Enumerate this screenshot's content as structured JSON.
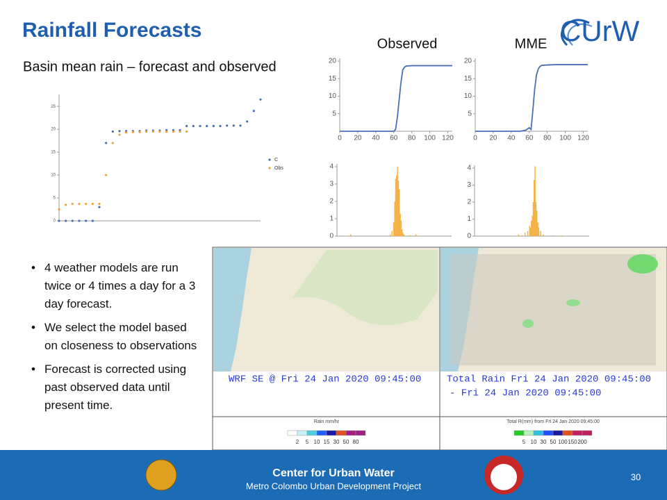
{
  "header": {
    "title": "Rainfall Forecasts",
    "subtitle": "Basin mean rain – forecast and observed",
    "logo": "CUrW"
  },
  "chart_data": [
    {
      "type": "scatter",
      "ylim": [
        0,
        27
      ],
      "yticks": [
        0,
        5,
        10,
        15,
        20,
        25
      ],
      "xlim": [
        0,
        120
      ],
      "x": [
        0,
        4,
        8,
        12,
        16,
        20,
        24,
        28,
        32,
        36,
        40,
        44,
        48,
        52,
        56,
        60,
        64,
        68,
        72,
        76,
        80,
        84,
        88,
        92,
        96,
        100,
        104,
        108,
        112,
        116,
        120
      ],
      "series": [
        {
          "name": "C",
          "color": "#4a6fb5",
          "values": [
            0,
            0,
            0,
            0,
            0,
            0,
            3,
            17,
            19.5,
            19.6,
            19.6,
            19.6,
            19.6,
            19.7,
            19.7,
            19.7,
            19.8,
            19.8,
            19.8,
            20.7,
            20.7,
            20.7,
            20.7,
            20.7,
            20.7,
            20.8,
            20.8,
            20.8,
            21.7,
            24,
            26.5
          ]
        },
        {
          "name": "Obs",
          "color": "#f0a030",
          "values": [
            2.5,
            3.5,
            3.7,
            3.7,
            3.7,
            3.7,
            3.7,
            10,
            17,
            18.8,
            19.3,
            19.4,
            19.4,
            19.5,
            19.5,
            19.5,
            19.5,
            19.5,
            19.5,
            19.5,
            null,
            null,
            null,
            null,
            null,
            null,
            null,
            null,
            null,
            null,
            null
          ]
        }
      ]
    },
    {
      "type": "line",
      "title": "Observed",
      "xlim": [
        0,
        125
      ],
      "ylim": [
        0,
        20
      ],
      "xticks": [
        0,
        20,
        40,
        60,
        80,
        100,
        120
      ],
      "yticks": [
        5,
        10,
        15,
        20
      ],
      "x": [
        0,
        10,
        20,
        30,
        40,
        50,
        60,
        62,
        64,
        66,
        68,
        70,
        72,
        74,
        80,
        90,
        100,
        110,
        120,
        125
      ],
      "series": [
        {
          "color": "#4a6fb5",
          "values": [
            0,
            0,
            0,
            0,
            0,
            0,
            0,
            0.5,
            4,
            9,
            14,
            17.5,
            18.3,
            18.6,
            18.7,
            18.7,
            18.7,
            18.7,
            18.7,
            18.7
          ]
        }
      ]
    },
    {
      "type": "line",
      "title": "MME",
      "xlim": [
        0,
        125
      ],
      "ylim": [
        0,
        20
      ],
      "xticks": [
        0,
        20,
        40,
        60,
        80,
        100,
        120
      ],
      "yticks": [
        5,
        10,
        15,
        20
      ],
      "x": [
        0,
        10,
        20,
        30,
        40,
        50,
        56,
        60,
        62,
        64,
        66,
        68,
        70,
        72,
        74,
        80,
        90,
        100,
        110,
        125
      ],
      "series": [
        {
          "color": "#4a6fb5",
          "values": [
            0,
            0,
            0,
            0,
            0,
            0,
            0.3,
            1,
            0.5,
            6,
            12,
            16,
            17.8,
            18.5,
            18.8,
            18.9,
            19,
            19,
            19,
            19
          ]
        }
      ]
    },
    {
      "type": "bar",
      "xlim": [
        0,
        125
      ],
      "ylim": [
        0,
        4
      ],
      "yticks": [
        0,
        1,
        2,
        3,
        4
      ],
      "color": "#f5b041",
      "x": [
        15,
        58,
        60,
        62,
        63,
        64,
        65,
        66,
        67,
        68,
        69,
        70,
        71,
        72,
        73,
        80,
        86
      ],
      "values": [
        0.1,
        0.1,
        0.3,
        0.8,
        2,
        3.3,
        3.5,
        4,
        3.2,
        2.7,
        1.3,
        0.9,
        0.4,
        0.2,
        0.1,
        0.05,
        0.1
      ]
    },
    {
      "type": "bar",
      "xlim": [
        0,
        125
      ],
      "ylim": [
        0,
        4
      ],
      "yticks": [
        0,
        1,
        2,
        3,
        4
      ],
      "color": "#f5b041",
      "x": [
        48,
        52,
        55,
        58,
        60,
        61,
        62,
        63,
        64,
        65,
        66,
        67,
        68,
        69,
        70,
        72,
        75,
        85,
        95
      ],
      "values": [
        0.1,
        0.05,
        0.2,
        0.3,
        0.6,
        0.5,
        0.9,
        1.2,
        2,
        3.3,
        4.1,
        2,
        1.5,
        0.8,
        0.5,
        0.3,
        0.1,
        0.05,
        0.05
      ]
    }
  ],
  "bullets": [
    "4 weather models are run twice or 4 times a day for a 3 day forecast.",
    "We select the model based on closeness to observations",
    "Forecast is corrected using past observed data until present time."
  ],
  "maps": [
    {
      "caption": [
        "WRF SE @ Fri 24 Jan 2020 09:45:00"
      ],
      "legend_title": "Rain mm/hr",
      "legend_labels": [
        "2",
        "5",
        "10",
        "15",
        "30",
        "50",
        "80"
      ]
    },
    {
      "caption": [
        "Total Rain Fri 24 Jan 2020 09:45:00",
        "- Fri 24 Jan 2020 09:45:00"
      ],
      "legend_title": "Total R(mm) from Fri 24 Jan 2020 09:45:00",
      "legend_labels": [
        "5",
        "10",
        "30",
        "50",
        "100",
        "150",
        "200"
      ]
    }
  ],
  "footer": {
    "title": "Center for Urban Water",
    "subtitle": "Metro Colombo Urban Development Project",
    "page": "30"
  }
}
